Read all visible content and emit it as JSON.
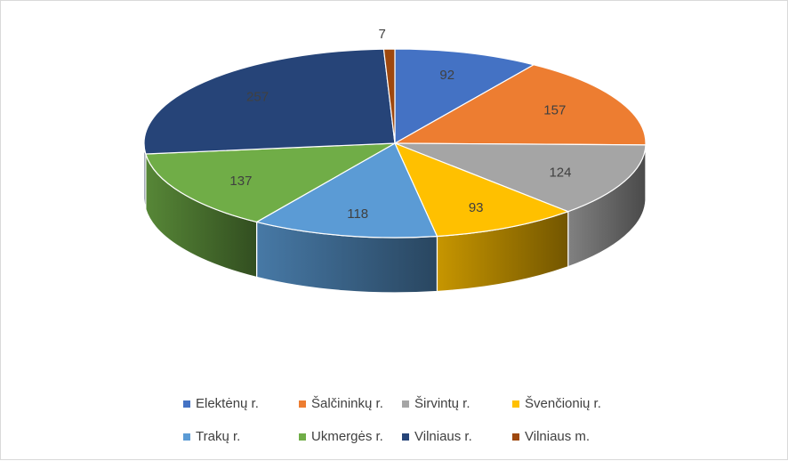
{
  "chart_data": {
    "type": "pie",
    "style": "3d",
    "title": "",
    "categories": [
      "Elektėnų r.",
      "Šalčininkų r.",
      "Širvintų r.",
      "Švenčionių r.",
      "Trakų r.",
      "Ukmergės r.",
      "Vilniaus r.",
      "Vilniaus m."
    ],
    "values": [
      92,
      157,
      124,
      93,
      118,
      137,
      257,
      7
    ],
    "colors": [
      "#4472c4",
      "#ed7d31",
      "#a5a5a5",
      "#ffc000",
      "#5b9bd5",
      "#70ad47",
      "#264478",
      "#9e480e"
    ],
    "legend": "bottom"
  }
}
